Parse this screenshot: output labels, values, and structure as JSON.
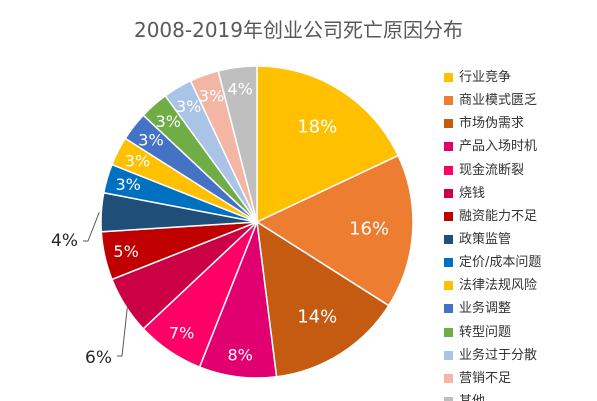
{
  "chart_data": {
    "type": "pie",
    "title": "2008-2019年创业公司死亡原因分布",
    "categories": [
      "行业竞争",
      "商业模式匮乏",
      "市场伪需求",
      "产品入场时机",
      "现金流断裂",
      "烧钱",
      "融资能力不足",
      "政策监管",
      "定价/成本问题",
      "法律法规风险",
      "业务调整",
      "转型问题",
      "业务过于分散",
      "营销不足",
      "其他"
    ],
    "values": [
      18,
      16,
      14,
      8,
      7,
      6,
      5,
      4,
      3,
      3,
      3,
      3,
      3,
      3,
      4
    ],
    "labels": [
      "18%",
      "16%",
      "14%",
      "8%",
      "7%",
      "6%",
      "5%",
      "4%",
      "3%",
      "3%",
      "3%",
      "3%",
      "3%",
      "3%",
      "4%"
    ],
    "colors": [
      "#ffc000",
      "#ed7d31",
      "#c55a11",
      "#e0006f",
      "#ff0066",
      "#cc0044",
      "#c00000",
      "#1f4e79",
      "#0070c0",
      "#ffc000",
      "#4472c4",
      "#70ad47",
      "#a9c4e4",
      "#f4b6a4",
      "#bfbfbf"
    ],
    "legend_position": "right"
  }
}
